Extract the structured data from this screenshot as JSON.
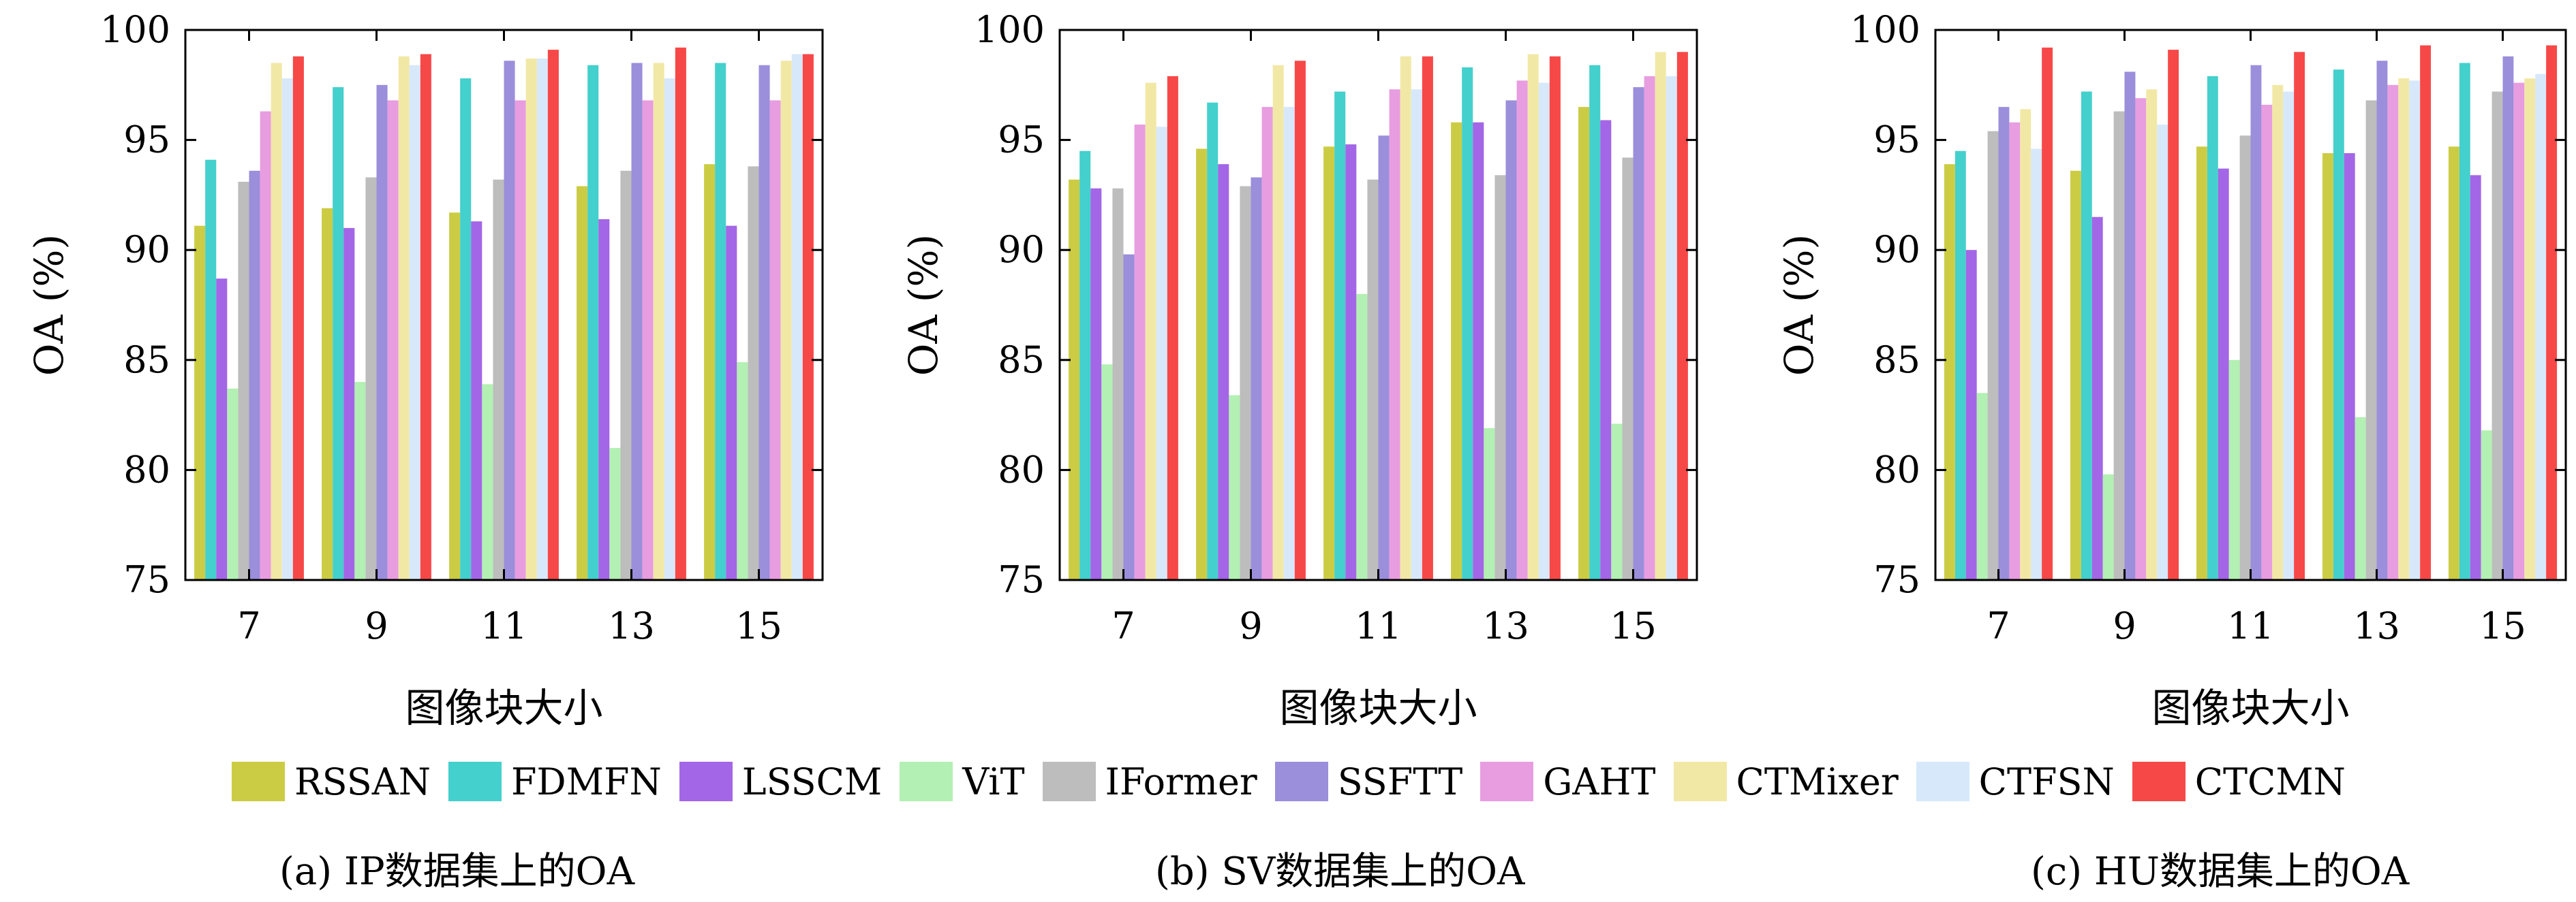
{
  "colors": [
    "#cccc44",
    "#44d0cc",
    "#a366e6",
    "#b3f0b3",
    "#bdbdbd",
    "#9b8edb",
    "#e89de0",
    "#f2e8a6",
    "#d7e8fa",
    "#f74848"
  ],
  "chart_data": [
    {
      "type": "bar",
      "caption": "(a) IP数据集上的OA",
      "xlabel": "图像块大小",
      "ylabel": "OA (%)",
      "ylim": [
        75,
        100
      ],
      "yticks": [
        "75",
        "80",
        "85",
        "90",
        "95",
        "100"
      ],
      "categories": [
        "7",
        "9",
        "11",
        "13",
        "15"
      ],
      "series": [
        {
          "name": "RSSAN",
          "values": [
            91.1,
            91.9,
            91.7,
            92.9,
            93.9
          ]
        },
        {
          "name": "FDMFN",
          "values": [
            94.1,
            97.4,
            97.8,
            98.4,
            98.5
          ]
        },
        {
          "name": "LSSCM",
          "values": [
            88.7,
            91.0,
            91.3,
            91.4,
            91.1
          ]
        },
        {
          "name": "ViT",
          "values": [
            83.7,
            84.0,
            83.9,
            81.0,
            84.9
          ]
        },
        {
          "name": "IFormer",
          "values": [
            93.1,
            93.3,
            93.2,
            93.6,
            93.8
          ]
        },
        {
          "name": "SSFTT",
          "values": [
            93.6,
            97.5,
            98.6,
            98.5,
            98.4
          ]
        },
        {
          "name": "GAHT",
          "values": [
            96.3,
            96.8,
            96.8,
            96.8,
            96.8
          ]
        },
        {
          "name": "CTMixer",
          "values": [
            98.5,
            98.8,
            98.7,
            98.5,
            98.6
          ]
        },
        {
          "name": "CTFSN",
          "values": [
            97.8,
            98.4,
            98.7,
            97.8,
            98.9
          ]
        },
        {
          "name": "CTCMN",
          "values": [
            98.8,
            98.9,
            99.1,
            99.2,
            98.9
          ]
        }
      ]
    },
    {
      "type": "bar",
      "caption": "(b) SV数据集上的OA",
      "xlabel": "图像块大小",
      "ylabel": "OA (%)",
      "ylim": [
        75,
        100
      ],
      "yticks": [
        "75",
        "80",
        "85",
        "90",
        "95",
        "100"
      ],
      "categories": [
        "7",
        "9",
        "11",
        "13",
        "15"
      ],
      "series": [
        {
          "name": "RSSAN",
          "values": [
            93.2,
            94.6,
            94.7,
            95.8,
            96.5
          ]
        },
        {
          "name": "FDMFN",
          "values": [
            94.5,
            96.7,
            97.2,
            98.3,
            98.4
          ]
        },
        {
          "name": "LSSCM",
          "values": [
            92.8,
            93.9,
            94.8,
            95.8,
            95.9
          ]
        },
        {
          "name": "ViT",
          "values": [
            84.8,
            83.4,
            88.0,
            81.9,
            82.1
          ]
        },
        {
          "name": "IFormer",
          "values": [
            92.8,
            92.9,
            93.2,
            93.4,
            94.2
          ]
        },
        {
          "name": "SSFTT",
          "values": [
            89.8,
            93.3,
            95.2,
            96.8,
            97.4
          ]
        },
        {
          "name": "GAHT",
          "values": [
            95.7,
            96.5,
            97.3,
            97.7,
            97.9
          ]
        },
        {
          "name": "CTMixer",
          "values": [
            97.6,
            98.4,
            98.8,
            98.9,
            99.0
          ]
        },
        {
          "name": "CTFSN",
          "values": [
            95.6,
            96.5,
            97.3,
            97.6,
            97.9
          ]
        },
        {
          "name": "CTCMN",
          "values": [
            97.9,
            98.6,
            98.8,
            98.8,
            99.0
          ]
        }
      ]
    },
    {
      "type": "bar",
      "caption": "(c) HU数据集上的OA",
      "xlabel": "图像块大小",
      "ylabel": "OA (%)",
      "ylim": [
        75,
        100
      ],
      "yticks": [
        "75",
        "80",
        "85",
        "90",
        "95",
        "100"
      ],
      "categories": [
        "7",
        "9",
        "11",
        "13",
        "15"
      ],
      "series": [
        {
          "name": "RSSAN",
          "values": [
            93.9,
            93.6,
            94.7,
            94.4,
            94.7
          ]
        },
        {
          "name": "FDMFN",
          "values": [
            94.5,
            97.2,
            97.9,
            98.2,
            98.5
          ]
        },
        {
          "name": "LSSCM",
          "values": [
            90.0,
            91.5,
            93.7,
            94.4,
            93.4
          ]
        },
        {
          "name": "ViT",
          "values": [
            83.5,
            79.8,
            85.0,
            82.4,
            81.8
          ]
        },
        {
          "name": "IFormer",
          "values": [
            95.4,
            96.3,
            95.2,
            96.8,
            97.2
          ]
        },
        {
          "name": "SSFTT",
          "values": [
            96.5,
            98.1,
            98.4,
            98.6,
            98.8
          ]
        },
        {
          "name": "GAHT",
          "values": [
            95.8,
            96.9,
            96.6,
            97.5,
            97.6
          ]
        },
        {
          "name": "CTMixer",
          "values": [
            96.4,
            97.3,
            97.5,
            97.8,
            97.8
          ]
        },
        {
          "name": "CTFSN",
          "values": [
            94.6,
            95.7,
            97.2,
            97.7,
            98.0
          ]
        },
        {
          "name": "CTCMN",
          "values": [
            99.2,
            99.1,
            99.0,
            99.3,
            99.3
          ]
        }
      ]
    }
  ],
  "legend": [
    {
      "label": "RSSAN",
      "color": "#cccc44"
    },
    {
      "label": "FDMFN",
      "color": "#44d0cc"
    },
    {
      "label": "LSSCM",
      "color": "#a366e6"
    },
    {
      "label": "ViT",
      "color": "#b3f0b3"
    },
    {
      "label": "IFormer",
      "color": "#bdbdbd"
    },
    {
      "label": "SSFTT",
      "color": "#9b8edb"
    },
    {
      "label": "GAHT",
      "color": "#e89de0"
    },
    {
      "label": "CTMixer",
      "color": "#f2e8a6"
    },
    {
      "label": "CTFSN",
      "color": "#d7e8fa"
    },
    {
      "label": "CTCMN",
      "color": "#f74848"
    }
  ]
}
